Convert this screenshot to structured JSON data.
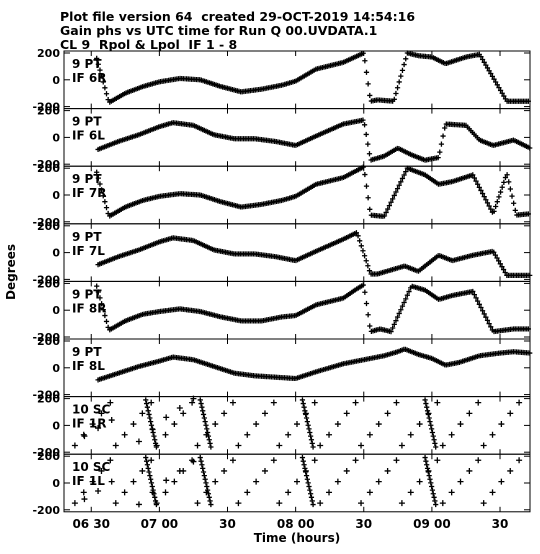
{
  "header": {
    "line1": "Plot file version 64  created 29-OCT-2019 14:54:16",
    "line2": "Gain phs vs UTC time for Run Q 00.UVDATA.1",
    "line3": "CL 9  Rpol & Lpol  IF 1 - 8"
  },
  "chart_data": {
    "type": "scatter",
    "xlabel": "Time (hours)",
    "ylabel": "Degrees",
    "x_unit": "hours UTC",
    "xlim": [
      6.3,
      9.72
    ],
    "x_ticks": [
      {
        "value": 6.5,
        "label": "06 30"
      },
      {
        "value": 7.0,
        "label": "07 00"
      },
      {
        "value": 7.5,
        "label": "30"
      },
      {
        "value": 8.0,
        "label": "08 00"
      },
      {
        "value": 8.5,
        "label": "30"
      },
      {
        "value": 9.0,
        "label": "09 00"
      },
      {
        "value": 9.5,
        "label": "30"
      }
    ],
    "ylim": [
      -215,
      215
    ],
    "y_ticks": [
      200,
      0,
      -200
    ],
    "marker": "plus",
    "color": "#000000",
    "panels": [
      {
        "station": "9 PT",
        "if": "IF 6R",
        "kind": "continuous",
        "points": [
          [
            6.54,
            160
          ],
          [
            6.63,
            -170
          ],
          [
            6.75,
            -100
          ],
          [
            6.88,
            -50
          ],
          [
            7.0,
            -15
          ],
          [
            7.15,
            10
          ],
          [
            7.3,
            0
          ],
          [
            7.45,
            -50
          ],
          [
            7.6,
            -90
          ],
          [
            7.75,
            -70
          ],
          [
            7.9,
            -40
          ],
          [
            8.0,
            -10
          ],
          [
            8.15,
            80
          ],
          [
            8.35,
            130
          ],
          [
            8.5,
            200
          ],
          [
            8.55,
            -160
          ],
          [
            8.6,
            -150
          ],
          [
            8.72,
            -160
          ],
          [
            8.82,
            200
          ],
          [
            8.9,
            180
          ],
          [
            9.0,
            170
          ],
          [
            9.1,
            120
          ],
          [
            9.25,
            170
          ],
          [
            9.35,
            190
          ],
          [
            9.55,
            -160
          ],
          [
            9.72,
            -160
          ]
        ]
      },
      {
        "station": "9 PT",
        "if": "IF 6L",
        "kind": "continuous",
        "points": [
          [
            6.55,
            -90
          ],
          [
            6.7,
            -30
          ],
          [
            6.85,
            20
          ],
          [
            7.0,
            80
          ],
          [
            7.1,
            110
          ],
          [
            7.25,
            90
          ],
          [
            7.4,
            20
          ],
          [
            7.55,
            -10
          ],
          [
            7.7,
            -10
          ],
          [
            7.85,
            -30
          ],
          [
            8.0,
            -60
          ],
          [
            8.15,
            10
          ],
          [
            8.35,
            100
          ],
          [
            8.5,
            130
          ],
          [
            8.55,
            -170
          ],
          [
            8.65,
            -140
          ],
          [
            8.75,
            -80
          ],
          [
            8.85,
            -130
          ],
          [
            8.95,
            -170
          ],
          [
            9.05,
            -150
          ],
          [
            9.1,
            100
          ],
          [
            9.25,
            90
          ],
          [
            9.35,
            -20
          ],
          [
            9.45,
            -60
          ],
          [
            9.6,
            -20
          ],
          [
            9.72,
            -80
          ]
        ]
      },
      {
        "station": "9 PT",
        "if": "IF 7R",
        "kind": "continuous",
        "points": [
          [
            6.54,
            170
          ],
          [
            6.63,
            -160
          ],
          [
            6.75,
            -90
          ],
          [
            6.88,
            -40
          ],
          [
            7.0,
            -10
          ],
          [
            7.15,
            10
          ],
          [
            7.3,
            0
          ],
          [
            7.45,
            -50
          ],
          [
            7.6,
            -90
          ],
          [
            7.75,
            -70
          ],
          [
            7.9,
            -40
          ],
          [
            8.0,
            -10
          ],
          [
            8.15,
            80
          ],
          [
            8.35,
            130
          ],
          [
            8.5,
            210
          ],
          [
            8.55,
            -150
          ],
          [
            8.65,
            -160
          ],
          [
            8.82,
            200
          ],
          [
            8.95,
            150
          ],
          [
            9.05,
            80
          ],
          [
            9.15,
            100
          ],
          [
            9.3,
            150
          ],
          [
            9.45,
            -140
          ],
          [
            9.55,
            160
          ],
          [
            9.62,
            -150
          ],
          [
            9.72,
            -140
          ]
        ]
      },
      {
        "station": "9 PT",
        "if": "IF 7L",
        "kind": "continuous",
        "points": [
          [
            6.55,
            -90
          ],
          [
            6.7,
            -30
          ],
          [
            6.85,
            20
          ],
          [
            7.0,
            80
          ],
          [
            7.1,
            110
          ],
          [
            7.25,
            90
          ],
          [
            7.4,
            20
          ],
          [
            7.55,
            -10
          ],
          [
            7.7,
            -10
          ],
          [
            7.85,
            -30
          ],
          [
            8.0,
            -60
          ],
          [
            8.15,
            10
          ],
          [
            8.35,
            100
          ],
          [
            8.45,
            150
          ],
          [
            8.55,
            -160
          ],
          [
            8.6,
            -160
          ],
          [
            8.7,
            -130
          ],
          [
            8.8,
            -100
          ],
          [
            8.9,
            -140
          ],
          [
            9.05,
            -20
          ],
          [
            9.15,
            -60
          ],
          [
            9.3,
            -20
          ],
          [
            9.45,
            10
          ],
          [
            9.55,
            -170
          ],
          [
            9.72,
            -170
          ]
        ]
      },
      {
        "station": "9 PT",
        "if": "IF 8R",
        "kind": "continuous",
        "points": [
          [
            6.54,
            180
          ],
          [
            6.63,
            -150
          ],
          [
            6.75,
            -80
          ],
          [
            6.88,
            -30
          ],
          [
            7.0,
            -10
          ],
          [
            7.15,
            10
          ],
          [
            7.3,
            -10
          ],
          [
            7.45,
            -50
          ],
          [
            7.6,
            -80
          ],
          [
            7.75,
            -80
          ],
          [
            7.9,
            -50
          ],
          [
            8.0,
            -40
          ],
          [
            8.15,
            40
          ],
          [
            8.35,
            90
          ],
          [
            8.45,
            160
          ],
          [
            8.5,
            190
          ],
          [
            8.55,
            -160
          ],
          [
            8.62,
            -140
          ],
          [
            8.7,
            -160
          ],
          [
            8.85,
            180
          ],
          [
            8.95,
            150
          ],
          [
            9.05,
            80
          ],
          [
            9.15,
            110
          ],
          [
            9.3,
            140
          ],
          [
            9.45,
            -160
          ],
          [
            9.6,
            -140
          ],
          [
            9.72,
            -140
          ]
        ]
      },
      {
        "station": "9 PT",
        "if": "IF 8L",
        "kind": "continuous",
        "points": [
          [
            6.55,
            -90
          ],
          [
            6.7,
            -40
          ],
          [
            6.85,
            10
          ],
          [
            7.0,
            50
          ],
          [
            7.1,
            80
          ],
          [
            7.25,
            60
          ],
          [
            7.4,
            10
          ],
          [
            7.55,
            -40
          ],
          [
            7.7,
            -60
          ],
          [
            7.85,
            -70
          ],
          [
            8.0,
            -80
          ],
          [
            8.15,
            -30
          ],
          [
            8.35,
            30
          ],
          [
            8.5,
            60
          ],
          [
            8.65,
            90
          ],
          [
            8.75,
            120
          ],
          [
            8.8,
            140
          ],
          [
            8.9,
            100
          ],
          [
            9.0,
            70
          ],
          [
            9.1,
            20
          ],
          [
            9.2,
            40
          ],
          [
            9.35,
            90
          ],
          [
            9.5,
            110
          ],
          [
            9.6,
            120
          ],
          [
            9.72,
            110
          ]
        ]
      },
      {
        "station": "10 SC",
        "if": "IF 1R",
        "kind": "wrapping",
        "diagonal_starts": [
          6.38,
          6.68,
          6.98,
          7.28,
          7.58,
          7.88,
          8.18,
          8.48,
          8.78,
          9.08,
          9.38
        ],
        "wrap_clusters": [
          6.9,
          7.3,
          8.05,
          8.95
        ],
        "points": [
          [
            6.45,
            -80
          ],
          [
            6.55,
            -20
          ],
          [
            6.65,
            40
          ],
          [
            6.85,
            -120
          ],
          [
            6.95,
            -30
          ],
          [
            7.05,
            60
          ],
          [
            7.15,
            130
          ],
          [
            7.25,
            200
          ]
        ]
      },
      {
        "station": "10 SC",
        "if": "IF 1L",
        "kind": "wrapping",
        "diagonal_starts": [
          6.38,
          6.68,
          6.98,
          7.28,
          7.58,
          7.88,
          8.18,
          8.48,
          8.78,
          9.08,
          9.38
        ],
        "wrap_clusters": [
          6.9,
          7.3,
          8.05,
          8.95
        ],
        "points": [
          [
            6.45,
            -120
          ],
          [
            6.55,
            -60
          ],
          [
            6.65,
            10
          ],
          [
            6.85,
            -160
          ],
          [
            6.95,
            -70
          ],
          [
            7.05,
            20
          ],
          [
            7.15,
            90
          ],
          [
            7.25,
            160
          ]
        ]
      }
    ]
  }
}
